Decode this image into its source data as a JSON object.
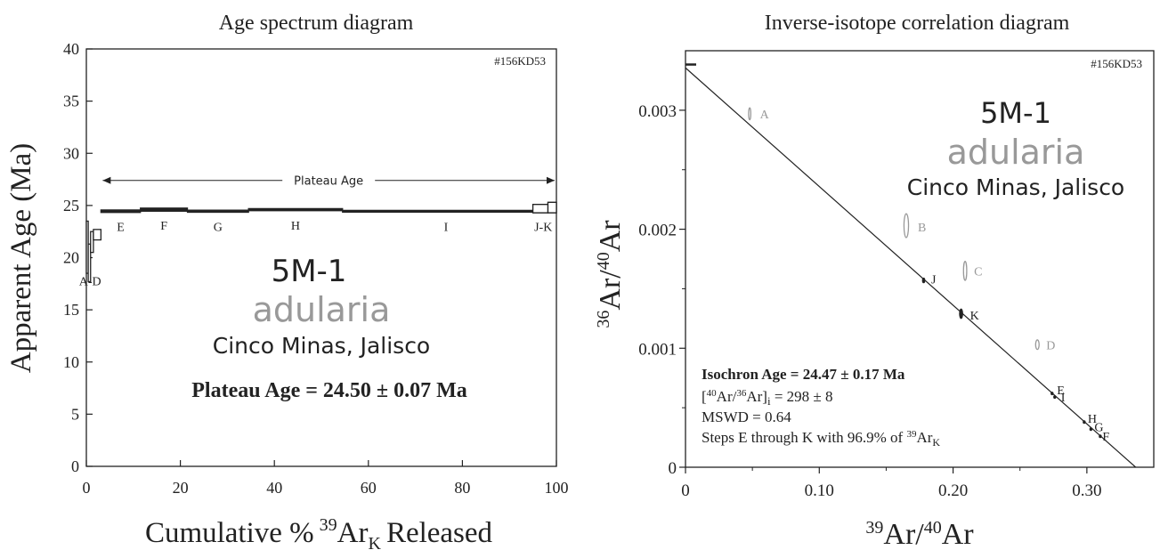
{
  "chart_data": [
    {
      "type": "line",
      "title": "Age spectrum diagram",
      "xlabel_main": "Cumulative %",
      "xlabel_sup": "39",
      "xlabel_main2": "Ar",
      "xlabel_sub": "K",
      "xlabel_tail": "Released",
      "ylabel": "Apparent Age (Ma)",
      "xlim": [
        0,
        100
      ],
      "ylim": [
        0,
        40
      ],
      "xticks": [
        0,
        20,
        40,
        60,
        80,
        100
      ],
      "yticks": [
        0,
        5,
        10,
        15,
        20,
        25,
        30,
        35,
        40
      ],
      "sample_id": "#156KD53",
      "plateau_label": "Plateau Age",
      "plateau_range": [
        3.1,
        100
      ],
      "plateau_age_text": "Plateau Age = 24.50 ± 0.07 Ma",
      "sample_name": "5M-1",
      "mineral": "adularia",
      "locality": "Cinco Minas, Jalisco",
      "steps": [
        {
          "label": "A",
          "x0": 0.0,
          "x1": 0.4,
          "age": 21.0,
          "err": 2.5
        },
        {
          "label": "B",
          "x0": 0.4,
          "x1": 0.9,
          "age": 19.5,
          "err": 1.8
        },
        {
          "label": "C",
          "x0": 0.9,
          "x1": 1.5,
          "age": 21.5,
          "err": 1.0
        },
        {
          "label": "D",
          "x0": 1.5,
          "x1": 3.1,
          "age": 22.2,
          "err": 0.5
        },
        {
          "label": "E",
          "x0": 3.1,
          "x1": 11.5,
          "age": 24.45,
          "err": 0.12
        },
        {
          "label": "F",
          "x0": 11.5,
          "x1": 21.5,
          "age": 24.6,
          "err": 0.15
        },
        {
          "label": "G",
          "x0": 21.5,
          "x1": 34.5,
          "age": 24.45,
          "err": 0.1
        },
        {
          "label": "H",
          "x0": 34.5,
          "x1": 54.5,
          "age": 24.6,
          "err": 0.1
        },
        {
          "label": "I",
          "x0": 54.5,
          "x1": 95.0,
          "age": 24.45,
          "err": 0.08
        },
        {
          "label": "J",
          "x0": 95.0,
          "x1": 98.2,
          "age": 24.7,
          "err": 0.4
        },
        {
          "label": "K",
          "x0": 98.2,
          "x1": 100.0,
          "age": 24.8,
          "err": 0.5
        }
      ],
      "step_labels": [
        {
          "text": "A-D",
          "x": 0.8,
          "y": 17.8
        },
        {
          "text": "E",
          "x": 7.3,
          "y": 23.0
        },
        {
          "text": "F",
          "x": 16.5,
          "y": 23.1
        },
        {
          "text": "G",
          "x": 28.0,
          "y": 23.0
        },
        {
          "text": "H",
          "x": 44.5,
          "y": 23.1
        },
        {
          "text": "I",
          "x": 76.5,
          "y": 23.0
        },
        {
          "text": "J-K",
          "x": 97.2,
          "y": 23.0
        }
      ]
    },
    {
      "type": "scatter",
      "title": "Inverse-isotope correlation diagram",
      "xlabel_sup1": "39",
      "xlabel_a": "Ar/",
      "xlabel_sup2": "40",
      "xlabel_b": "Ar",
      "ylabel_sup1": "36",
      "ylabel_a": "Ar/",
      "ylabel_sup2": "40",
      "ylabel_b": "Ar",
      "xlim": [
        0,
        0.35
      ],
      "ylim": [
        0,
        0.0035
      ],
      "xticks": [
        0,
        0.1,
        0.2,
        0.3
      ],
      "xtick_labels": [
        "0",
        "0.10",
        "0.20",
        "0.30"
      ],
      "yticks": [
        0,
        0.001,
        0.002,
        0.003
      ],
      "ytick_labels": [
        "0",
        "0.001",
        "0.002",
        "0.003"
      ],
      "sample_id": "#156KD53",
      "sample_name": "5M-1",
      "mineral": "adularia",
      "locality": "Cinco Minas, Jalisco",
      "isochron_line": {
        "intercept_y": 0.003356,
        "intercept_x": 0.3365
      },
      "atm_marker_y": 0.003384,
      "points": [
        {
          "label": "A",
          "x": 0.048,
          "y": 0.00297,
          "sx": 0.0005,
          "sy": 5e-05,
          "included": false
        },
        {
          "label": "B",
          "x": 0.165,
          "y": 0.00203,
          "sx": 0.0017,
          "sy": 0.0001,
          "included": false
        },
        {
          "label": "C",
          "x": 0.209,
          "y": 0.00165,
          "sx": 0.0012,
          "sy": 8e-05,
          "included": false
        },
        {
          "label": "D",
          "x": 0.263,
          "y": 0.00103,
          "sx": 0.0013,
          "sy": 4e-05,
          "included": false
        },
        {
          "label": "E",
          "x": 0.274,
          "y": 0.00062,
          "sx": 0.0004,
          "sy": 1e-05,
          "included": true
        },
        {
          "label": "I",
          "x": 0.276,
          "y": 0.00059,
          "sx": 0.0004,
          "sy": 1e-05,
          "included": true
        },
        {
          "label": "H",
          "x": 0.298,
          "y": 0.00038,
          "sx": 0.0004,
          "sy": 1e-05,
          "included": true
        },
        {
          "label": "G",
          "x": 0.303,
          "y": 0.00032,
          "sx": 0.0004,
          "sy": 1e-05,
          "included": true
        },
        {
          "label": "F",
          "x": 0.31,
          "y": 0.00026,
          "sx": 0.0004,
          "sy": 1e-05,
          "included": true
        },
        {
          "label": "J",
          "x": 0.178,
          "y": 0.00157,
          "sx": 0.0009,
          "sy": 2e-05,
          "included": true
        },
        {
          "label": "K",
          "x": 0.206,
          "y": 0.00129,
          "sx": 0.0012,
          "sy": 4e-05,
          "included": true
        }
      ],
      "point_labels": [
        {
          "text": "A",
          "x": 0.053,
          "y": 0.00297,
          "included": false
        },
        {
          "text": "B",
          "x": 0.171,
          "y": 0.00202,
          "included": false
        },
        {
          "text": "C",
          "x": 0.213,
          "y": 0.00165,
          "included": false
        },
        {
          "text": "D",
          "x": 0.267,
          "y": 0.00103,
          "included": false
        },
        {
          "text": "E",
          "x": 0.275,
          "y": 0.00065,
          "included": true
        },
        {
          "text": "I",
          "x": 0.278,
          "y": 0.00059,
          "included": true
        },
        {
          "text": "H",
          "x": 0.298,
          "y": 0.00041,
          "included": true
        },
        {
          "text": "G",
          "x": 0.303,
          "y": 0.00034,
          "included": true
        },
        {
          "text": "F",
          "x": 0.309,
          "y": 0.00026,
          "included": true
        },
        {
          "text": "J",
          "x": 0.181,
          "y": 0.00158,
          "included": true
        },
        {
          "text": "K",
          "x": 0.21,
          "y": 0.00128,
          "included": true
        }
      ],
      "isochron_age_text": "Isochron Age = 24.47 ± 0.17 Ma",
      "initial_ratio_sup1": "40",
      "initial_ratio_mid": "Ar/",
      "initial_ratio_sup2": "36",
      "initial_ratio_tail": "Ar]",
      "initial_ratio_sub": "i",
      "initial_ratio_value": " = 298 ± 8",
      "mswd_text": "MSWD = 0.64",
      "steps_text": "Steps E through K with 96.9% of ",
      "steps_sup": "39",
      "steps_ar": "Ar",
      "steps_sub": "K"
    }
  ]
}
